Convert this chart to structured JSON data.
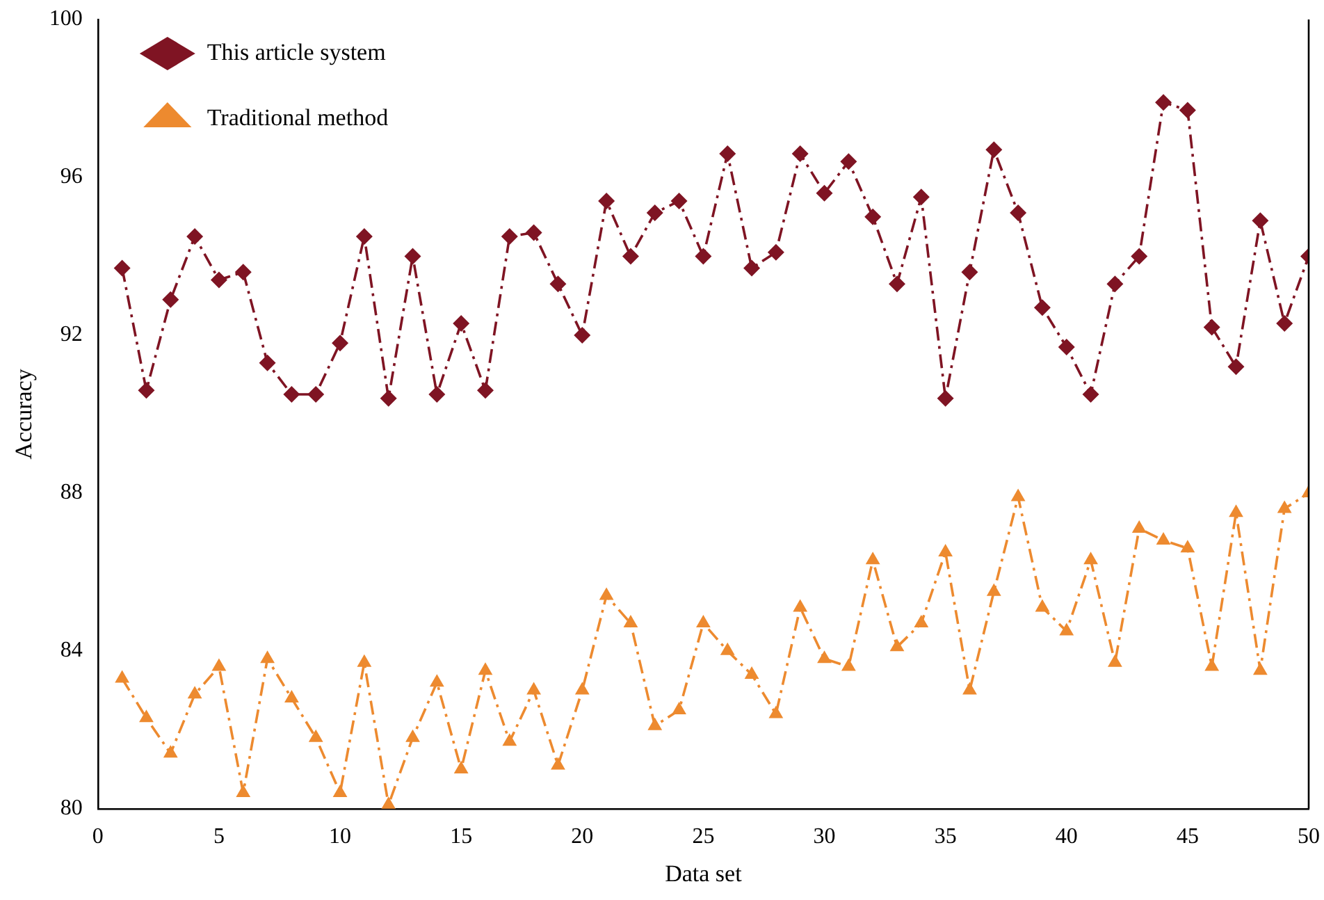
{
  "chart_data": {
    "type": "line",
    "xlabel": "Data set",
    "ylabel": "Accuracy",
    "x": [
      1,
      2,
      3,
      4,
      5,
      6,
      7,
      8,
      9,
      10,
      11,
      12,
      13,
      14,
      15,
      16,
      17,
      18,
      19,
      20,
      21,
      22,
      23,
      24,
      25,
      26,
      27,
      28,
      29,
      30,
      31,
      32,
      33,
      34,
      35,
      36,
      37,
      38,
      39,
      40,
      41,
      42,
      43,
      44,
      45,
      46,
      47,
      48,
      49,
      50
    ],
    "series": [
      {
        "name": "This article system",
        "color": "#7f1423",
        "marker": "diamond",
        "values": [
          93.7,
          90.6,
          92.9,
          94.5,
          93.4,
          93.6,
          91.3,
          90.5,
          90.5,
          91.8,
          94.5,
          90.4,
          94.0,
          90.5,
          92.3,
          90.6,
          94.5,
          94.6,
          93.3,
          92.0,
          95.4,
          94.0,
          95.1,
          95.4,
          94.0,
          96.6,
          93.7,
          94.1,
          96.6,
          95.6,
          96.4,
          95.0,
          93.3,
          95.5,
          90.4,
          93.6,
          96.7,
          95.1,
          92.7,
          91.7,
          90.5,
          93.3,
          94.0,
          97.9,
          97.7,
          92.2,
          91.2,
          94.9,
          92.3,
          94.0
        ]
      },
      {
        "name": "Traditional method",
        "color": "#ed8a2f",
        "marker": "triangle",
        "values": [
          83.3,
          82.3,
          81.4,
          82.9,
          83.6,
          80.4,
          83.8,
          82.8,
          81.8,
          80.4,
          83.7,
          80.1,
          81.8,
          83.2,
          81.0,
          83.5,
          81.7,
          83.0,
          81.1,
          83.0,
          85.4,
          84.7,
          82.1,
          82.5,
          84.7,
          84.0,
          83.4,
          82.4,
          85.1,
          83.8,
          83.6,
          86.3,
          84.1,
          84.7,
          86.5,
          83.0,
          85.5,
          87.9,
          85.1,
          84.5,
          86.3,
          83.7,
          87.1,
          86.8,
          86.6,
          83.6,
          87.5,
          83.5,
          87.6,
          88.0
        ]
      }
    ],
    "xlim": [
      0,
      50
    ],
    "xticks": [
      0,
      5,
      10,
      15,
      20,
      25,
      30,
      35,
      40,
      45,
      50
    ],
    "ylim": [
      80,
      100
    ],
    "yticks": [
      80,
      84,
      88,
      92,
      96,
      100
    ],
    "grid": false,
    "legend": "top left",
    "line_style": "dashed"
  }
}
